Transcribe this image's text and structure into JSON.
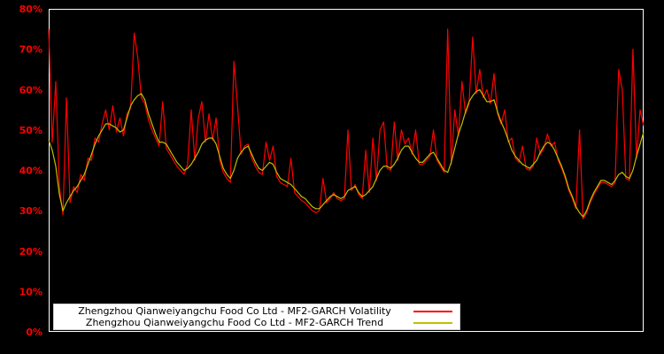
{
  "chart_data": {
    "type": "line",
    "title": "",
    "xlabel": "",
    "ylabel": "",
    "x_axis_labels_visible": false,
    "ylim": [
      0,
      80
    ],
    "yticks": [
      0,
      10,
      20,
      30,
      40,
      50,
      60,
      70,
      80
    ],
    "ytick_labels": [
      "0%",
      "10%",
      "20%",
      "30%",
      "40%",
      "50%",
      "60%",
      "70%",
      "80%"
    ],
    "grid": false,
    "background_color": "#000000",
    "axis_color": "#ffffff",
    "tick_label_color": "#ff0000",
    "legend_position": "bottom-left",
    "series": [
      {
        "id": "volatility",
        "name": "Zhengzhou Qianweiyangchu Food Co Ltd - MF2-GARCH Volatility",
        "color": "#ff0000",
        "values": [
          75,
          47,
          62,
          36,
          29,
          58,
          32,
          36,
          34.5,
          39,
          37.5,
          43,
          42.5,
          48,
          47,
          51.5,
          55,
          50,
          56,
          49.5,
          53,
          48.5,
          54,
          55.5,
          74,
          68,
          58,
          56.5,
          52.5,
          50,
          48,
          46,
          57,
          45.5,
          44,
          42.5,
          41,
          40,
          39,
          41.5,
          55,
          42.5,
          53,
          57,
          47,
          54,
          47.5,
          53,
          42.5,
          39.5,
          38,
          37,
          67,
          56,
          44,
          46,
          46.5,
          43,
          41,
          39.5,
          39,
          47,
          42.5,
          46,
          38.5,
          37,
          36.5,
          36,
          43,
          34.5,
          33.5,
          32.5,
          32,
          31,
          30,
          29.5,
          30,
          38,
          32,
          33,
          34.5,
          33,
          32.5,
          33,
          50,
          35,
          36.5,
          34,
          33,
          45,
          34.5,
          48,
          37.5,
          50,
          52,
          40.5,
          40,
          52,
          42.5,
          50,
          46.5,
          48,
          44,
          50,
          41.5,
          41.5,
          42.5,
          43.5,
          50,
          42.5,
          41,
          39.5,
          75,
          41.5,
          55,
          48.5,
          62,
          54,
          56.5,
          73,
          59,
          65,
          58,
          60,
          56.5,
          64,
          54,
          51.5,
          55,
          47,
          48,
          43,
          42,
          46,
          40.5,
          40,
          41,
          48,
          44,
          45.5,
          49,
          46,
          47,
          42.5,
          40.5,
          38,
          35,
          33,
          30.5,
          50,
          28,
          29.5,
          32,
          34,
          35.5,
          37,
          37,
          36.5,
          36,
          37,
          65,
          60,
          38,
          37.5,
          70,
          43,
          55,
          51
        ]
      },
      {
        "id": "trend",
        "name": "Zhengzhou Qianweiyangchu Food Co Ltd - MF2-GARCH Trend",
        "color": "#bfbf00",
        "values": [
          47.5,
          45,
          41,
          34,
          30,
          32,
          33.5,
          35,
          36,
          37.5,
          39,
          41.5,
          44,
          46.5,
          48.5,
          50,
          51.5,
          51.5,
          51,
          50.5,
          49.5,
          50,
          53,
          56,
          57.5,
          58.5,
          59,
          57.5,
          54,
          51.5,
          49,
          47,
          47,
          46.5,
          45,
          43.5,
          42,
          41,
          40,
          40.5,
          41.5,
          43,
          44.5,
          46.5,
          47.5,
          48,
          48,
          46.5,
          43.5,
          40.5,
          39,
          38,
          40,
          43,
          44.5,
          45.5,
          46,
          44,
          42,
          40.5,
          40,
          41,
          42,
          41.5,
          39.5,
          38,
          37.5,
          37,
          36.5,
          35.5,
          34.5,
          33.5,
          33,
          32,
          31,
          30.5,
          30.5,
          31.5,
          32.5,
          33.5,
          34,
          33.5,
          33,
          33.5,
          35,
          35.5,
          36,
          34.5,
          33.5,
          34,
          35,
          36,
          38,
          40,
          41,
          41,
          40.5,
          41.5,
          43,
          45,
          46,
          46,
          44.5,
          43,
          42,
          42,
          43,
          44,
          44.5,
          43,
          41.5,
          40,
          39.5,
          42,
          45.5,
          49,
          51.5,
          54.5,
          57,
          58.5,
          59.5,
          60,
          58.5,
          57,
          57,
          57.5,
          54.5,
          52,
          50,
          47.5,
          45,
          43.5,
          42.5,
          41.5,
          41,
          40.5,
          41.5,
          42.5,
          44.5,
          46,
          47,
          46.5,
          45,
          43,
          41,
          38.5,
          35.5,
          33.5,
          31,
          29.5,
          28.5,
          30,
          32.5,
          34.5,
          36,
          37.5,
          37.5,
          37,
          36.5,
          37.5,
          39,
          39.5,
          38.5,
          38,
          40,
          43.5,
          46.5,
          49.5
        ]
      }
    ]
  },
  "legend": {
    "background": "#ffffff",
    "text_color": "#000000",
    "items": [
      {
        "label": "Zhengzhou Qianweiyangchu Food Co Ltd - MF2-GARCH Volatility",
        "color": "#ff0000"
      },
      {
        "label": "Zhengzhou Qianweiyangchu Food Co Ltd - MF2-GARCH Trend",
        "color": "#bfbf00"
      }
    ]
  }
}
